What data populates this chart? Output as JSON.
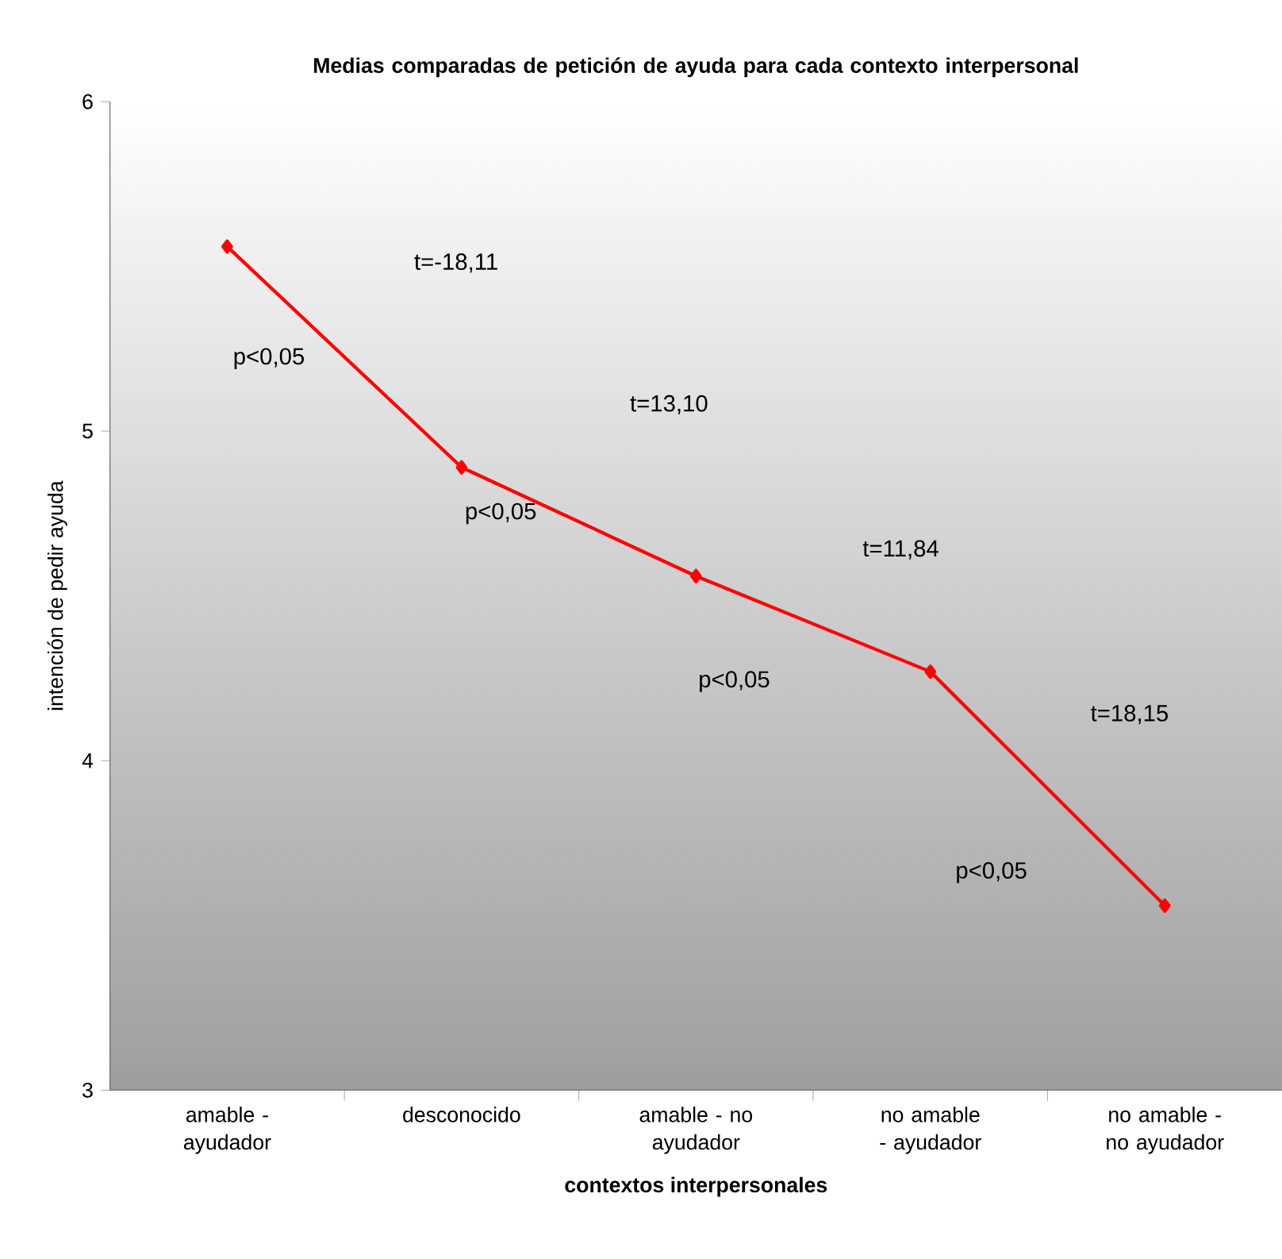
{
  "chart_data": {
    "type": "line",
    "title": "Medias comparadas de petición de ayuda para cada contexto interpersonal",
    "xlabel": "contextos interpersonales",
    "ylabel": "intención de pedir ayuda",
    "categories": [
      "amable - ayudador",
      "desconocido",
      "amable - no ayudador",
      "no amable - ayudador",
      "no amable - no ayudador"
    ],
    "series": [
      {
        "color": "#ff0000",
        "values": [
          5.56,
          4.89,
          4.56,
          4.27,
          3.56
        ]
      }
    ],
    "ylim": [
      3,
      6
    ],
    "yticks": [
      3,
      4,
      5,
      6
    ],
    "marker": "diamond",
    "line_style": "solid",
    "grid": false,
    "annotations": [
      "t=-18,11",
      "p<0,05",
      "t=13,10",
      "p<0,05",
      "t=11,84",
      "p<0,05",
      "t=18,15",
      "p<0,05"
    ]
  }
}
